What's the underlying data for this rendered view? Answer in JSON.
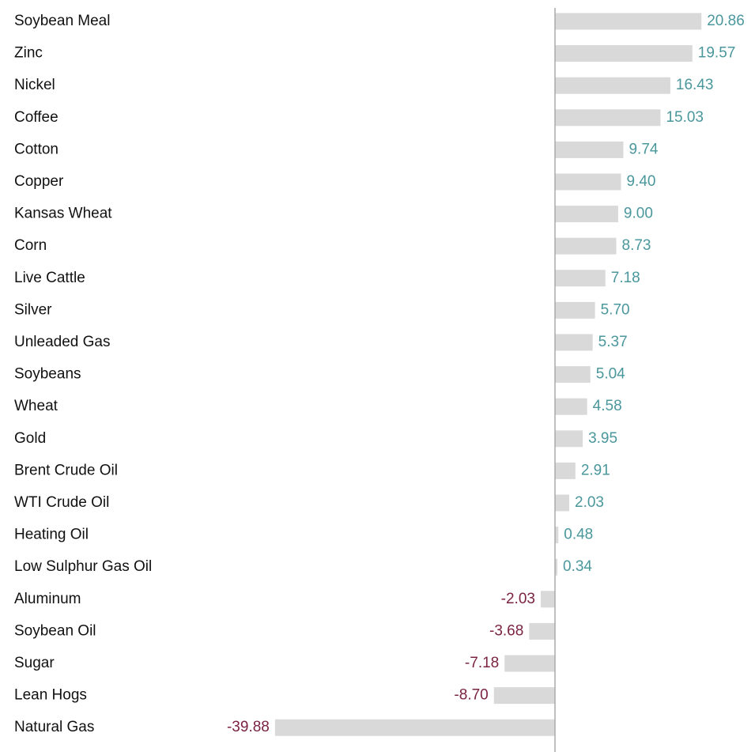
{
  "chart_data": {
    "type": "bar",
    "orientation": "horizontal",
    "categories": [
      "Soybean Meal",
      "Zinc",
      "Nickel",
      "Coffee",
      "Cotton",
      "Copper",
      "Kansas Wheat",
      "Corn",
      "Live Cattle",
      "Silver",
      "Unleaded Gas",
      "Soybeans",
      "Wheat",
      "Gold",
      "Brent Crude Oil",
      "WTI Crude Oil",
      "Heating Oil",
      "Low Sulphur Gas Oil",
      "Aluminum",
      "Soybean Oil",
      "Sugar",
      "Lean Hogs",
      "Natural Gas"
    ],
    "values": [
      20.86,
      19.57,
      16.43,
      15.03,
      9.74,
      9.4,
      9,
      8.73,
      7.18,
      5.7,
      5.37,
      5.04,
      4.58,
      3.95,
      2.91,
      2.03,
      0.48,
      0.34,
      -2.03,
      -3.68,
      -7.18,
      -8.7,
      -39.88
    ],
    "value_labels": [
      "20.86",
      "19.57",
      "16.43",
      "15.03",
      "9.74",
      "9.40",
      "9.00",
      "8.73",
      "7.18",
      "5.70",
      "5.37",
      "5.04",
      "4.58",
      "3.95",
      "2.91",
      "2.03",
      "0.48",
      "0.34",
      "-2.03",
      "-3.68",
      "-7.18",
      "-8.70",
      "-39.88"
    ],
    "color": "#d9d9d9",
    "positive_label_color": "#4a979c",
    "negative_label_color": "#7b2343"
  }
}
